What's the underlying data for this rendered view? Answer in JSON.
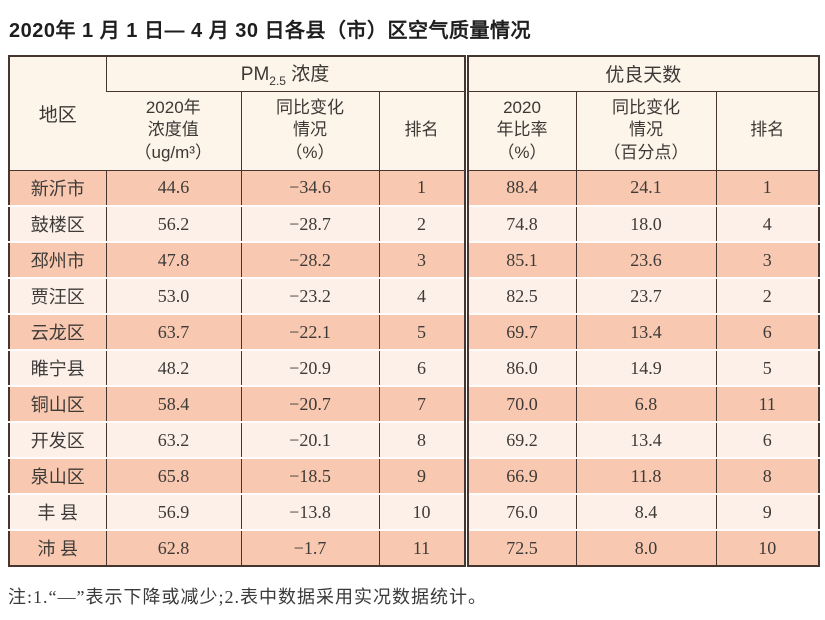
{
  "title": "2020年 1 月 1 日— 4 月 30 日各县（市）区空气质量情况",
  "note": "注:1.“—”表示下降或减少;2.表中数据采用实况数据统计。",
  "table": {
    "headers": {
      "region": "地区",
      "pm25_group": {
        "pre": "PM",
        "sub": "2.5",
        "post": " 浓度"
      },
      "good_days_group": "优良天数",
      "pm25_value": "2020年\n浓度值\n（ug/m³）",
      "pm25_change": "同比变化\n情况\n（%）",
      "pm25_rank": "排名",
      "good_rate": "2020\n年比率\n（%）",
      "good_change": "同比变化\n情况\n（百分点）",
      "good_rank": "排名"
    },
    "rows": [
      {
        "region": "新沂市",
        "pm25_value": "44.6",
        "pm25_change": "−34.6",
        "pm25_rank": "1",
        "good_rate": "88.4",
        "good_change": "24.1",
        "good_rank": "1"
      },
      {
        "region": "鼓楼区",
        "pm25_value": "56.2",
        "pm25_change": "−28.7",
        "pm25_rank": "2",
        "good_rate": "74.8",
        "good_change": "18.0",
        "good_rank": "4"
      },
      {
        "region": "邳州市",
        "pm25_value": "47.8",
        "pm25_change": "−28.2",
        "pm25_rank": "3",
        "good_rate": "85.1",
        "good_change": "23.6",
        "good_rank": "3"
      },
      {
        "region": "贾汪区",
        "pm25_value": "53.0",
        "pm25_change": "−23.2",
        "pm25_rank": "4",
        "good_rate": "82.5",
        "good_change": "23.7",
        "good_rank": "2"
      },
      {
        "region": "云龙区",
        "pm25_value": "63.7",
        "pm25_change": "−22.1",
        "pm25_rank": "5",
        "good_rate": "69.7",
        "good_change": "13.4",
        "good_rank": "6"
      },
      {
        "region": "睢宁县",
        "pm25_value": "48.2",
        "pm25_change": "−20.9",
        "pm25_rank": "6",
        "good_rate": "86.0",
        "good_change": "14.9",
        "good_rank": "5"
      },
      {
        "region": "铜山区",
        "pm25_value": "58.4",
        "pm25_change": "−20.7",
        "pm25_rank": "7",
        "good_rate": "70.0",
        "good_change": "6.8",
        "good_rank": "11"
      },
      {
        "region": "开发区",
        "pm25_value": "63.2",
        "pm25_change": "−20.1",
        "pm25_rank": "8",
        "good_rate": "69.2",
        "good_change": "13.4",
        "good_rank": "6"
      },
      {
        "region": "泉山区",
        "pm25_value": "65.8",
        "pm25_change": "−18.5",
        "pm25_rank": "9",
        "good_rate": "66.9",
        "good_change": "11.8",
        "good_rank": "8"
      },
      {
        "region": "丰 县",
        "pm25_value": "56.9",
        "pm25_change": "−13.8",
        "pm25_rank": "10",
        "good_rate": "76.0",
        "good_change": "8.4",
        "good_rank": "9"
      },
      {
        "region": "沛 县",
        "pm25_value": "62.8",
        "pm25_change": "−1.7",
        "pm25_rank": "11",
        "good_rate": "72.5",
        "good_change": "8.0",
        "good_rank": "10"
      }
    ]
  }
}
